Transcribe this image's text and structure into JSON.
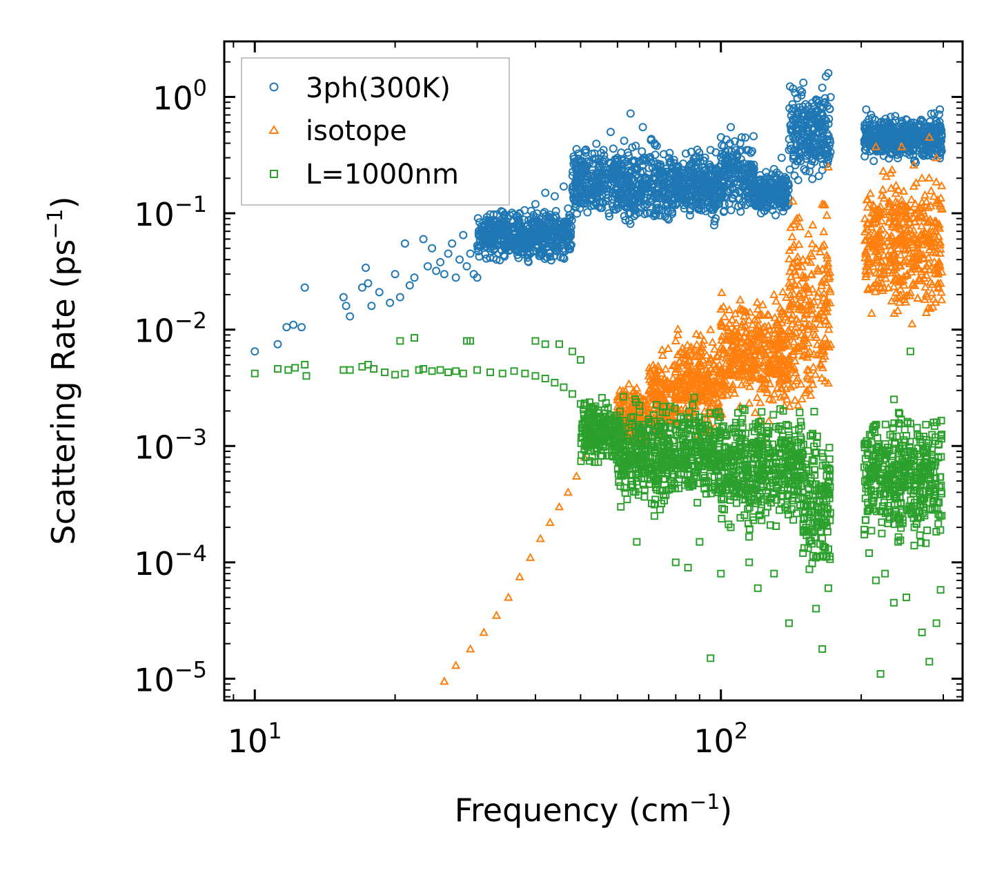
{
  "chart_data": {
    "type": "scatter",
    "xscale": "log",
    "yscale": "log",
    "xlim": [
      8.6,
      330
    ],
    "ylim": [
      6.5e-06,
      3.0
    ],
    "xlabel": "Frequency (cm",
    "xlabel_sup": "−1",
    "xlabel_close": ")",
    "ylabel": "Scattering Rate (ps",
    "ylabel_sup": "−1",
    "ylabel_close": ")",
    "x_ticks": [
      {
        "value": 10,
        "base": "10",
        "exp": "1"
      },
      {
        "value": 100,
        "base": "10",
        "exp": "2"
      }
    ],
    "y_ticks": [
      {
        "value": 1,
        "base": "10",
        "exp": "0"
      },
      {
        "value": 0.1,
        "base": "10",
        "exp": "−1"
      },
      {
        "value": 0.01,
        "base": "10",
        "exp": "−2"
      },
      {
        "value": 0.001,
        "base": "10",
        "exp": "−3"
      },
      {
        "value": 0.0001,
        "base": "10",
        "exp": "−4"
      },
      {
        "value": 1e-05,
        "base": "10",
        "exp": "−5"
      }
    ],
    "legend_position": "top-left",
    "series": [
      {
        "name": "3ph(300K)",
        "marker": "circle",
        "color": "#1f77b4",
        "points": [
          [
            10.0,
            0.0065
          ],
          [
            11.2,
            0.0075
          ],
          [
            11.7,
            0.0105
          ],
          [
            12.1,
            0.011
          ],
          [
            12.6,
            0.0105
          ],
          [
            12.8,
            0.023
          ],
          [
            15.5,
            0.019
          ],
          [
            15.7,
            0.016
          ],
          [
            16.0,
            0.013
          ],
          [
            17.0,
            0.023
          ],
          [
            17.3,
            0.034
          ],
          [
            17.5,
            0.025
          ],
          [
            17.8,
            0.016
          ],
          [
            18.5,
            0.021
          ],
          [
            19.5,
            0.017
          ],
          [
            20.0,
            0.03
          ],
          [
            20.5,
            0.019
          ],
          [
            21.0,
            0.055
          ],
          [
            21.5,
            0.024
          ],
          [
            22.0,
            0.028
          ],
          [
            23.0,
            0.06
          ],
          [
            23.5,
            0.035
          ],
          [
            24.0,
            0.05
          ],
          [
            24.5,
            0.032
          ],
          [
            25.0,
            0.038
          ],
          [
            25.5,
            0.03
          ],
          [
            26.0,
            0.045
          ],
          [
            26.5,
            0.055
          ],
          [
            27.0,
            0.028
          ],
          [
            27.5,
            0.04
          ],
          [
            28.0,
            0.065
          ],
          [
            28.5,
            0.035
          ],
          [
            29.0,
            0.045
          ],
          [
            29.5,
            0.03
          ],
          [
            30.0,
            0.028
          ],
          [
            31.0,
            0.07
          ],
          [
            32.0,
            0.05
          ],
          [
            33.0,
            0.04
          ],
          [
            34.0,
            0.085
          ],
          [
            35.0,
            0.075
          ],
          [
            36.0,
            0.06
          ],
          [
            37.0,
            0.1
          ],
          [
            38.0,
            0.055
          ],
          [
            39.0,
            0.045
          ],
          [
            40.0,
            0.12
          ],
          [
            41.0,
            0.065
          ],
          [
            42.0,
            0.15
          ],
          [
            43.0,
            0.09
          ],
          [
            44.0,
            0.14
          ],
          [
            45.0,
            0.08
          ],
          [
            46.0,
            0.17
          ],
          [
            47.0,
            0.11
          ],
          [
            48.0,
            0.16
          ],
          [
            49.0,
            0.13
          ],
          [
            50.0,
            0.19
          ],
          [
            52.0,
            0.28
          ],
          [
            54.0,
            0.22
          ],
          [
            56.0,
            0.35
          ],
          [
            58.0,
            0.5
          ],
          [
            60.0,
            0.3
          ],
          [
            62.0,
            0.42
          ],
          [
            64.0,
            0.72
          ],
          [
            66.0,
            0.25
          ],
          [
            68.0,
            0.55
          ],
          [
            70.0,
            0.3
          ],
          [
            72.0,
            0.4
          ],
          [
            75.0,
            0.2
          ],
          [
            78.0,
            0.28
          ],
          [
            80.0,
            0.12
          ],
          [
            82.0,
            0.16
          ],
          [
            85.0,
            0.22
          ],
          [
            88.0,
            0.2
          ],
          [
            90.0,
            0.3
          ],
          [
            95.0,
            0.35
          ],
          [
            100.0,
            0.45
          ],
          [
            105.0,
            0.55
          ],
          [
            110.0,
            0.4
          ],
          [
            115.0,
            0.22
          ],
          [
            120.0,
            0.12
          ],
          [
            122.0,
            0.1
          ],
          [
            125.0,
            0.18
          ],
          [
            130.0,
            0.24
          ],
          [
            135.0,
            0.3
          ],
          [
            140.0,
            0.35
          ],
          [
            145.0,
            0.45
          ],
          [
            150.0,
            0.55
          ],
          [
            155.0,
            0.7
          ],
          [
            160.0,
            0.95
          ],
          [
            165.0,
            1.2
          ],
          [
            168.0,
            1.5
          ],
          [
            170.0,
            1.6
          ],
          [
            205.0,
            0.78
          ],
          [
            210.0,
            0.7
          ],
          [
            220.0,
            0.6
          ],
          [
            230.0,
            0.5
          ],
          [
            240.0,
            0.4
          ],
          [
            250.0,
            0.33
          ],
          [
            260.0,
            0.28
          ],
          [
            270.0,
            0.32
          ],
          [
            280.0,
            0.45
          ],
          [
            290.0,
            0.62
          ],
          [
            295.0,
            0.78
          ]
        ],
        "bands": [
          [
            30,
            48,
            0.035,
            0.12
          ],
          [
            48,
            62,
            0.07,
            0.45
          ],
          [
            62,
            80,
            0.06,
            0.5
          ],
          [
            80,
            100,
            0.07,
            0.42
          ],
          [
            100,
            118,
            0.08,
            0.55
          ],
          [
            118,
            140,
            0.09,
            0.26
          ],
          [
            140,
            172,
            0.15,
            1.55
          ],
          [
            203,
            298,
            0.25,
            0.8
          ]
        ]
      },
      {
        "name": "isotope",
        "marker": "triangle",
        "color": "#ff7f0e",
        "points": [
          [
            25.5,
            9.5e-06
          ],
          [
            27.0,
            1.3e-05
          ],
          [
            29.0,
            1.8e-05
          ],
          [
            31.0,
            2.5e-05
          ],
          [
            33.0,
            3.5e-05
          ],
          [
            35.0,
            5e-05
          ],
          [
            37.0,
            7.5e-05
          ],
          [
            39.0,
            0.00011
          ],
          [
            41.0,
            0.00016
          ],
          [
            43.0,
            0.00022
          ],
          [
            45.0,
            0.0003
          ],
          [
            47.0,
            0.0004
          ],
          [
            49.0,
            0.00055
          ],
          [
            51.0,
            0.0008
          ],
          [
            53.0,
            0.0011
          ],
          [
            55.0,
            0.0014
          ],
          [
            57.0,
            0.0018
          ],
          [
            60.0,
            0.0025
          ],
          [
            65.0,
            0.003
          ],
          [
            70.0,
            0.004
          ],
          [
            75.0,
            0.006
          ],
          [
            80.0,
            0.008
          ],
          [
            85.0,
            0.005
          ],
          [
            90.0,
            0.006
          ],
          [
            95.0,
            0.01
          ],
          [
            100.0,
            0.015
          ],
          [
            110.0,
            0.018
          ],
          [
            120.0,
            0.015
          ],
          [
            130.0,
            0.02
          ],
          [
            140.0,
            0.025
          ],
          [
            150.0,
            0.04
          ],
          [
            160.0,
            0.05
          ],
          [
            165.0,
            0.12
          ],
          [
            170.0,
            0.25
          ],
          [
            205.0,
            0.03
          ],
          [
            210.0,
            0.06
          ],
          [
            220.0,
            0.1
          ],
          [
            230.0,
            0.12
          ],
          [
            240.0,
            0.06
          ],
          [
            250.0,
            0.08
          ],
          [
            260.0,
            0.1
          ],
          [
            270.0,
            0.2
          ],
          [
            280.0,
            0.45
          ],
          [
            290.0,
            0.3
          ],
          [
            296.0,
            0.025
          ]
        ],
        "bands": [
          [
            60,
            70,
            0.0008,
            0.004
          ],
          [
            70,
            80,
            0.0008,
            0.008
          ],
          [
            80,
            100,
            0.001,
            0.012
          ],
          [
            100,
            140,
            0.0015,
            0.025
          ],
          [
            140,
            172,
            0.001,
            0.2
          ],
          [
            203,
            298,
            0.008,
            0.4
          ]
        ]
      },
      {
        "name": "L=1000nm",
        "marker": "square",
        "color": "#2ca02c",
        "points": [
          [
            10.0,
            0.0042
          ],
          [
            11.2,
            0.0046
          ],
          [
            11.8,
            0.0045
          ],
          [
            12.2,
            0.0047
          ],
          [
            12.8,
            0.005
          ],
          [
            12.9,
            0.004
          ],
          [
            15.5,
            0.0045
          ],
          [
            16.0,
            0.0045
          ],
          [
            17.0,
            0.0048
          ],
          [
            17.5,
            0.005
          ],
          [
            18.0,
            0.0046
          ],
          [
            19.0,
            0.0043
          ],
          [
            20.0,
            0.0041
          ],
          [
            20.5,
            0.008
          ],
          [
            21.0,
            0.0042
          ],
          [
            22.0,
            0.0085
          ],
          [
            22.5,
            0.0045
          ],
          [
            23.0,
            0.0046
          ],
          [
            24.0,
            0.0044
          ],
          [
            25.0,
            0.0045
          ],
          [
            26.0,
            0.0043
          ],
          [
            27.0,
            0.0044
          ],
          [
            28.0,
            0.0042
          ],
          [
            28.5,
            0.008
          ],
          [
            29.0,
            0.008
          ],
          [
            30.0,
            0.0045
          ],
          [
            32.0,
            0.0043
          ],
          [
            34.0,
            0.0042
          ],
          [
            36.0,
            0.0044
          ],
          [
            38.0,
            0.0042
          ],
          [
            40.0,
            0.004
          ],
          [
            42.0,
            0.0038
          ],
          [
            44.0,
            0.0035
          ],
          [
            46.0,
            0.0032
          ],
          [
            48.0,
            0.0028
          ],
          [
            50.0,
            0.0023
          ],
          [
            52.0,
            0.0018
          ],
          [
            54.0,
            0.0014
          ],
          [
            45.0,
            0.0075
          ],
          [
            48.0,
            0.0065
          ],
          [
            50.0,
            0.0055
          ],
          [
            40.0,
            0.008
          ],
          [
            42.0,
            0.0075
          ],
          [
            61.0,
            0.0003
          ],
          [
            66.0,
            0.00015
          ],
          [
            72.0,
            0.00025
          ],
          [
            80.0,
            0.0001
          ],
          [
            85.0,
            9e-05
          ],
          [
            90.0,
            0.00015
          ],
          [
            95.0,
            1.5e-05
          ],
          [
            100.0,
            8e-05
          ],
          [
            105.0,
            0.0002
          ],
          [
            115.0,
            0.0001
          ],
          [
            120.0,
            6e-05
          ],
          [
            130.0,
            8e-05
          ],
          [
            140.0,
            3e-05
          ],
          [
            150.0,
            0.00012
          ],
          [
            160.0,
            4e-05
          ],
          [
            165.0,
            1.8e-05
          ],
          [
            170.0,
            6e-05
          ],
          [
            208.0,
            0.00012
          ],
          [
            215.0,
            7e-05
          ],
          [
            220.0,
            1.1e-05
          ],
          [
            225.0,
            8e-05
          ],
          [
            235.0,
            4.5e-05
          ],
          [
            240.0,
            0.00015
          ],
          [
            250.0,
            5e-05
          ],
          [
            260.0,
            0.0002
          ],
          [
            270.0,
            2.5e-05
          ],
          [
            280.0,
            1.4e-05
          ],
          [
            290.0,
            3e-05
          ],
          [
            296.0,
            5.8e-05
          ],
          [
            255.0,
            0.0065
          ]
        ],
        "bands": [
          [
            50,
            60,
            0.0006,
            0.003
          ],
          [
            60,
            100,
            0.00025,
            0.003
          ],
          [
            100,
            150,
            0.00015,
            0.0028
          ],
          [
            150,
            172,
            5e-05,
            0.0025
          ],
          [
            203,
            298,
            0.0001,
            0.003
          ]
        ]
      }
    ]
  }
}
